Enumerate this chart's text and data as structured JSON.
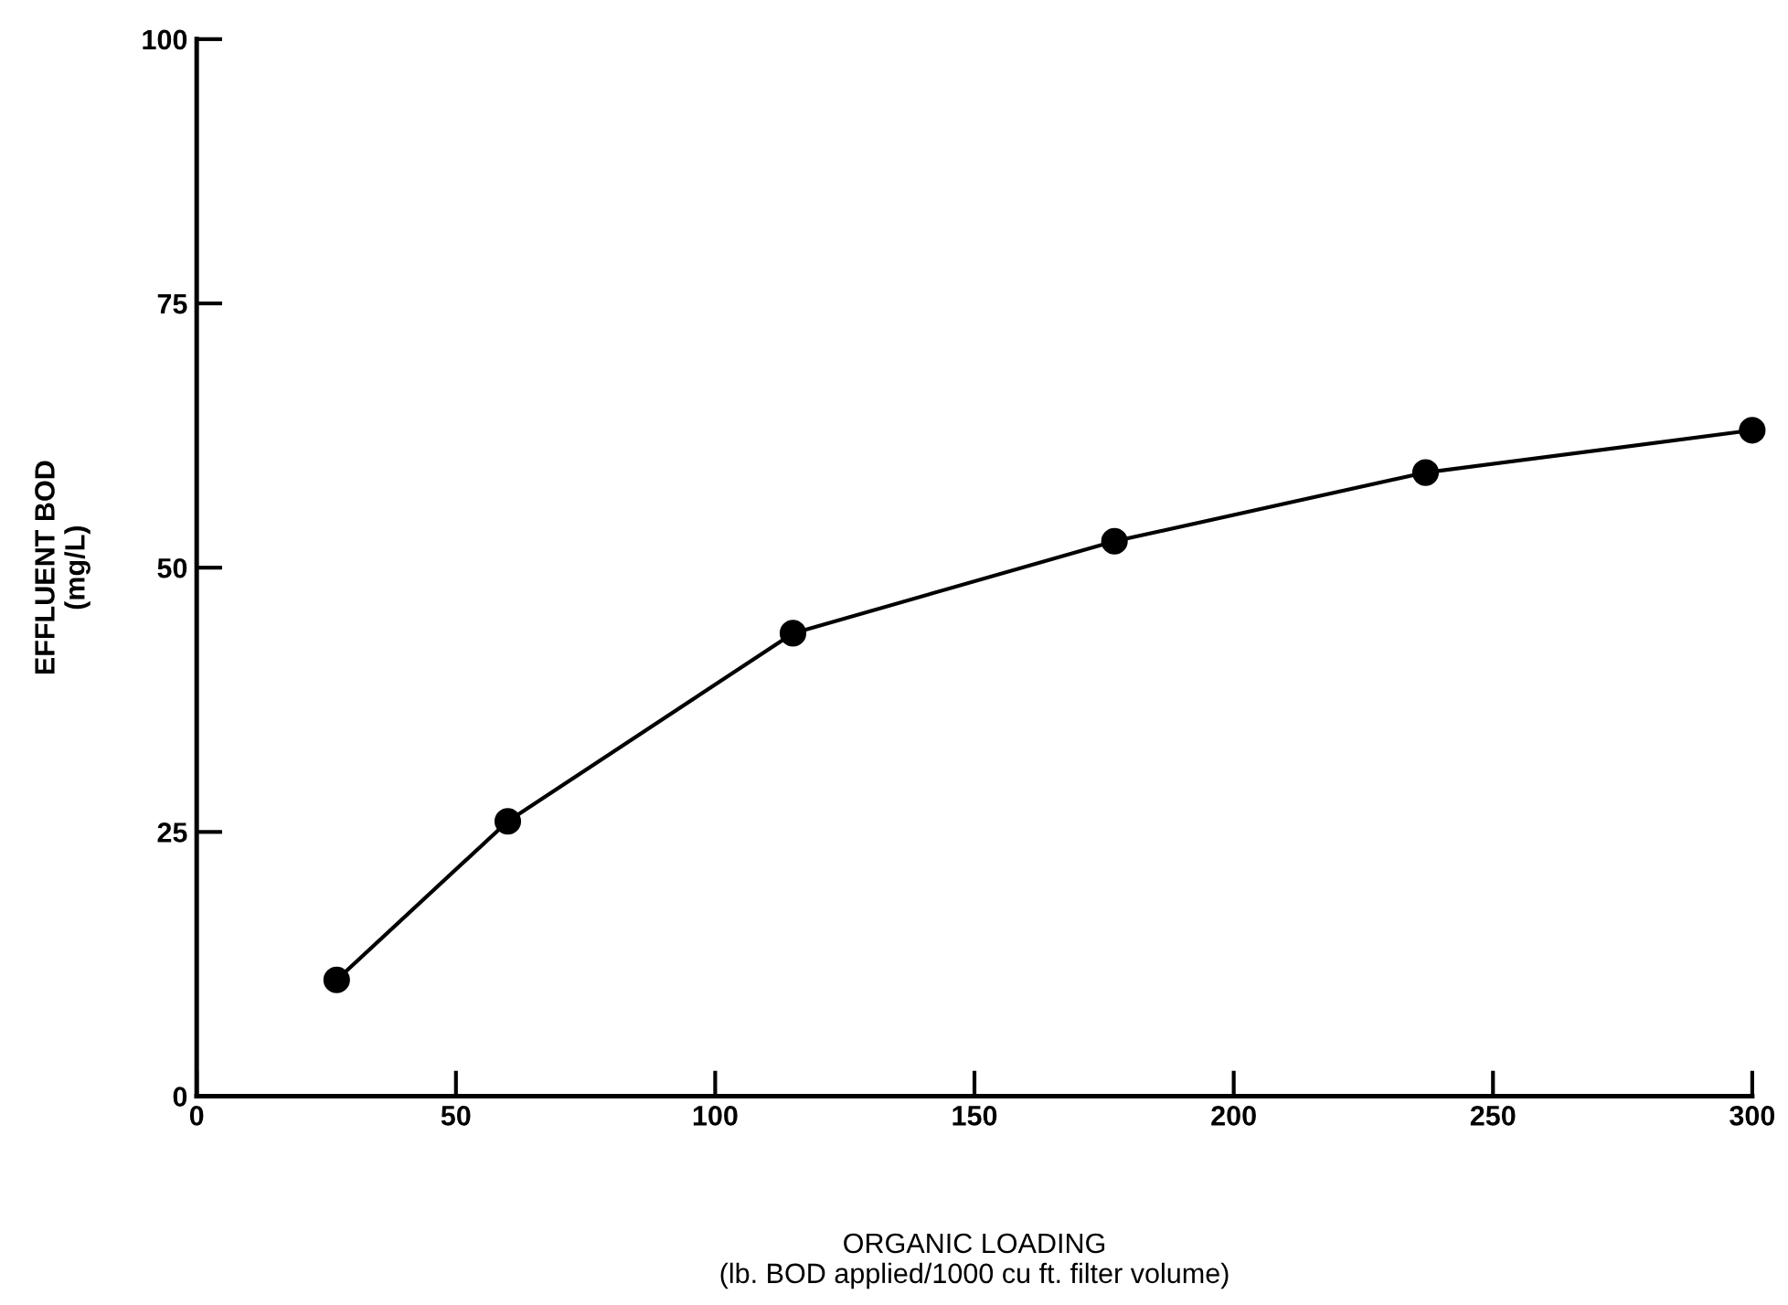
{
  "chart_data": {
    "type": "line",
    "xlabel": "ORGANIC LOADING\n(lb. BOD applied/1000 cu ft. filter volume)",
    "ylabel": "EFFLUENT BOD\n(mg/L)",
    "x": [
      27,
      60,
      115,
      177,
      237,
      300
    ],
    "series": [
      {
        "color": "#000000",
        "values": [
          11,
          26,
          43.8,
          52.5,
          59,
          63
        ]
      }
    ],
    "xlim": [
      0,
      300
    ],
    "ylim": [
      0,
      100
    ],
    "xticks": [
      0,
      50,
      100,
      150,
      200,
      250,
      300
    ],
    "yticks": [
      0,
      25,
      50,
      75,
      100
    ],
    "marker": "circle",
    "line_style": "solid",
    "grid": false,
    "legend": false
  }
}
